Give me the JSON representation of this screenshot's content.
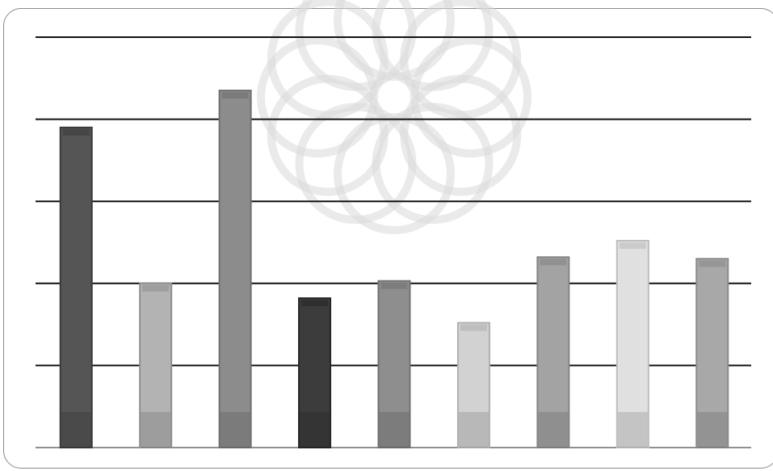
{
  "chart_data": {
    "type": "bar",
    "categories": [
      "",
      "",
      "",
      "",
      "",
      "",
      "",
      "",
      ""
    ],
    "values": [
      3.9,
      2.0,
      4.35,
      1.82,
      2.03,
      1.52,
      2.32,
      2.52,
      2.3
    ],
    "ylim": [
      0,
      5
    ],
    "grid": true,
    "legend": "none",
    "bar_colors": [
      "#555555",
      "#b3b3b3",
      "#8c8c8c",
      "#3c3c3c",
      "#8e8e8e",
      "#d2d2d2",
      "#a3a3a3",
      "#e0e0e0",
      "#a8a8a8"
    ],
    "bar_edge_colors": [
      "#3a3a3a",
      "#8f8f8f",
      "#6f6f6f",
      "#262626",
      "#717171",
      "#b0b0b0",
      "#858585",
      "#bdbdbd",
      "#8a8a8a"
    ],
    "gridline_color": "#111111",
    "watermark_color": "#d9d9d9"
  }
}
